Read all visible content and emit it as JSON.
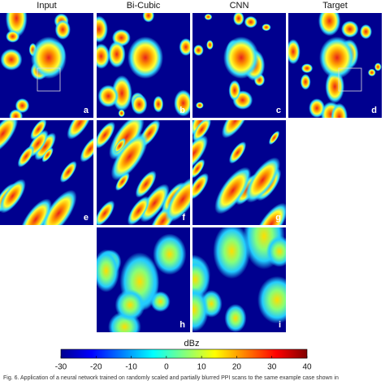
{
  "figure": {
    "columns": [
      "Input",
      "Bi-Cubic",
      "CNN",
      "Target"
    ],
    "panels": [
      "a",
      "b",
      "c",
      "d",
      "e",
      "f",
      "g",
      "h",
      "i"
    ],
    "colorbar": {
      "label": "dBz",
      "range": [
        -30,
        40
      ],
      "ticks": [
        -30,
        -20,
        -10,
        0,
        10,
        20,
        30,
        40
      ]
    },
    "caption": "Fig. 6. Application of a neural network trained on randomly scaled and partially blurred PPI scans to the same example case shown in"
  }
}
